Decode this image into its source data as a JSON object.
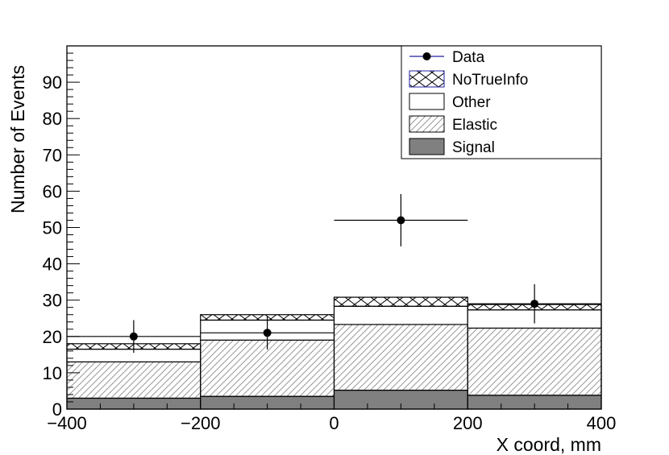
{
  "chart_data": {
    "type": "bar",
    "xlabel": "X coord, mm",
    "ylabel": "Number of Events",
    "xlim": [
      -400,
      400
    ],
    "ylim": [
      0,
      100
    ],
    "x_bin_edges": [
      -400,
      -200,
      0,
      200,
      400
    ],
    "x_tick_labels": [
      "−400",
      "−200",
      "0",
      "200",
      "400"
    ],
    "y_tick_labels": [
      "0",
      "10",
      "20",
      "30",
      "40",
      "50",
      "60",
      "70",
      "80",
      "90"
    ],
    "stack_type": "stacked histogram",
    "series": [
      {
        "name": "Signal",
        "values": [
          3,
          3.5,
          5.2,
          3.8
        ],
        "color": "#808080",
        "fill": "solid"
      },
      {
        "name": "Elastic",
        "values": [
          10,
          15.5,
          18.1,
          18.5
        ],
        "color": "#000000",
        "fill": "hatched"
      },
      {
        "name": "Other",
        "values": [
          3.5,
          5.5,
          5.0,
          5.0
        ],
        "color": "#ffffff",
        "fill": "none"
      },
      {
        "name": "NoTrueInfo",
        "values": [
          1.5,
          1.5,
          2.5,
          1.5
        ],
        "color": "#000000",
        "fill": "crosshatch"
      }
    ],
    "data_points": {
      "name": "Data",
      "x": [
        -300,
        -100,
        100,
        300
      ],
      "y": [
        20,
        21,
        52,
        29
      ],
      "y_err": [
        4.5,
        4.6,
        7.2,
        5.4
      ],
      "x_err": [
        100,
        100,
        100,
        100
      ]
    },
    "legend": {
      "placement": "top-right",
      "entries": [
        "Data",
        "NoTrueInfo",
        "Other",
        "Elastic",
        "Signal"
      ]
    },
    "grid": false
  }
}
